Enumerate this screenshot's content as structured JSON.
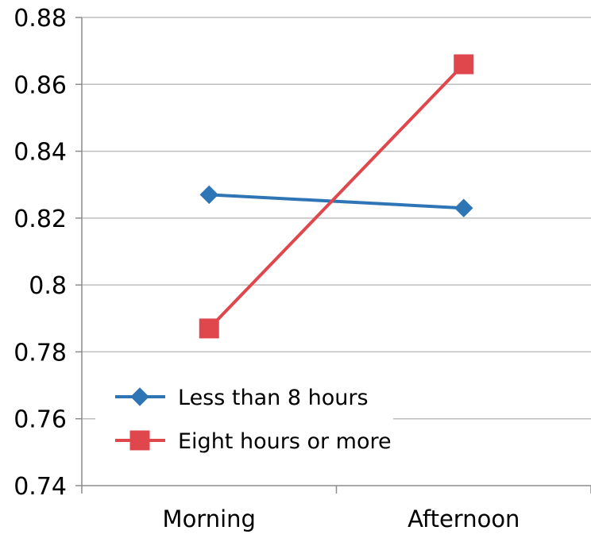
{
  "chart_data": {
    "type": "line",
    "categories": [
      "Morning",
      "Afternoon"
    ],
    "series": [
      {
        "name": "Less than 8 hours",
        "values": [
          0.827,
          0.823
        ],
        "color": "#2E75B6",
        "marker": "diamond"
      },
      {
        "name": "Eight hours or more",
        "values": [
          0.787,
          0.866
        ],
        "color": "#E0474C",
        "marker": "square"
      }
    ],
    "ylim": [
      0.74,
      0.88
    ],
    "yticks": [
      "0.74",
      "0.76",
      "0.78",
      "0.8",
      "0.82",
      "0.84",
      "0.86",
      "0.88"
    ],
    "grid": true,
    "legend_position": "bottom-left (inside plot)",
    "title": "",
    "xlabel": "",
    "ylabel": ""
  }
}
